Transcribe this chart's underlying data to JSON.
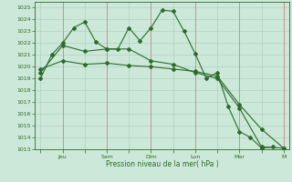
{
  "bg_color": "#cce8d8",
  "grid_color": "#aaccbb",
  "line_color": "#2d6b2d",
  "sep_line_color": "#cc8888",
  "ylabel": "Pression niveau de la mer( hPa )",
  "ylim": [
    1013,
    1025.5
  ],
  "yticks": [
    1013,
    1014,
    1015,
    1016,
    1017,
    1018,
    1019,
    1020,
    1021,
    1022,
    1023,
    1024,
    1025
  ],
  "xtick_labels": [
    "",
    "Jeu",
    "",
    "Sam",
    "",
    "Dim",
    "",
    "Lun",
    "",
    "Mar",
    "",
    "M"
  ],
  "xtick_positions": [
    0,
    2,
    4,
    6,
    8,
    10,
    12,
    14,
    16,
    18,
    20,
    22
  ],
  "sep_x": [
    2,
    6,
    10,
    14,
    18,
    22
  ],
  "series1_x": [
    0,
    1,
    2,
    3,
    4,
    5,
    6,
    7,
    8,
    9,
    10,
    11,
    12,
    13,
    14,
    15,
    16,
    17,
    18,
    19,
    20,
    21
  ],
  "series1_y": [
    1019.0,
    1021.0,
    1022.0,
    1023.3,
    1023.8,
    1022.1,
    1021.5,
    1021.5,
    1023.3,
    1022.2,
    1023.3,
    1024.8,
    1024.7,
    1023.0,
    1021.1,
    1019.0,
    1019.5,
    1016.6,
    1014.5,
    1014.0,
    1013.1,
    1013.2
  ],
  "series2_x": [
    0,
    2,
    4,
    6,
    8,
    10,
    12,
    14,
    16,
    18,
    20,
    22
  ],
  "series2_y": [
    1019.5,
    1021.8,
    1021.3,
    1021.5,
    1021.5,
    1020.5,
    1020.2,
    1019.5,
    1019.0,
    1016.5,
    1013.2,
    1013.1
  ],
  "series3_x": [
    0,
    2,
    4,
    6,
    8,
    10,
    12,
    14,
    16,
    18,
    20,
    22
  ],
  "series3_y": [
    1019.8,
    1020.5,
    1020.2,
    1020.3,
    1020.1,
    1020.0,
    1019.8,
    1019.6,
    1019.2,
    1016.8,
    1014.7,
    1013.1
  ]
}
